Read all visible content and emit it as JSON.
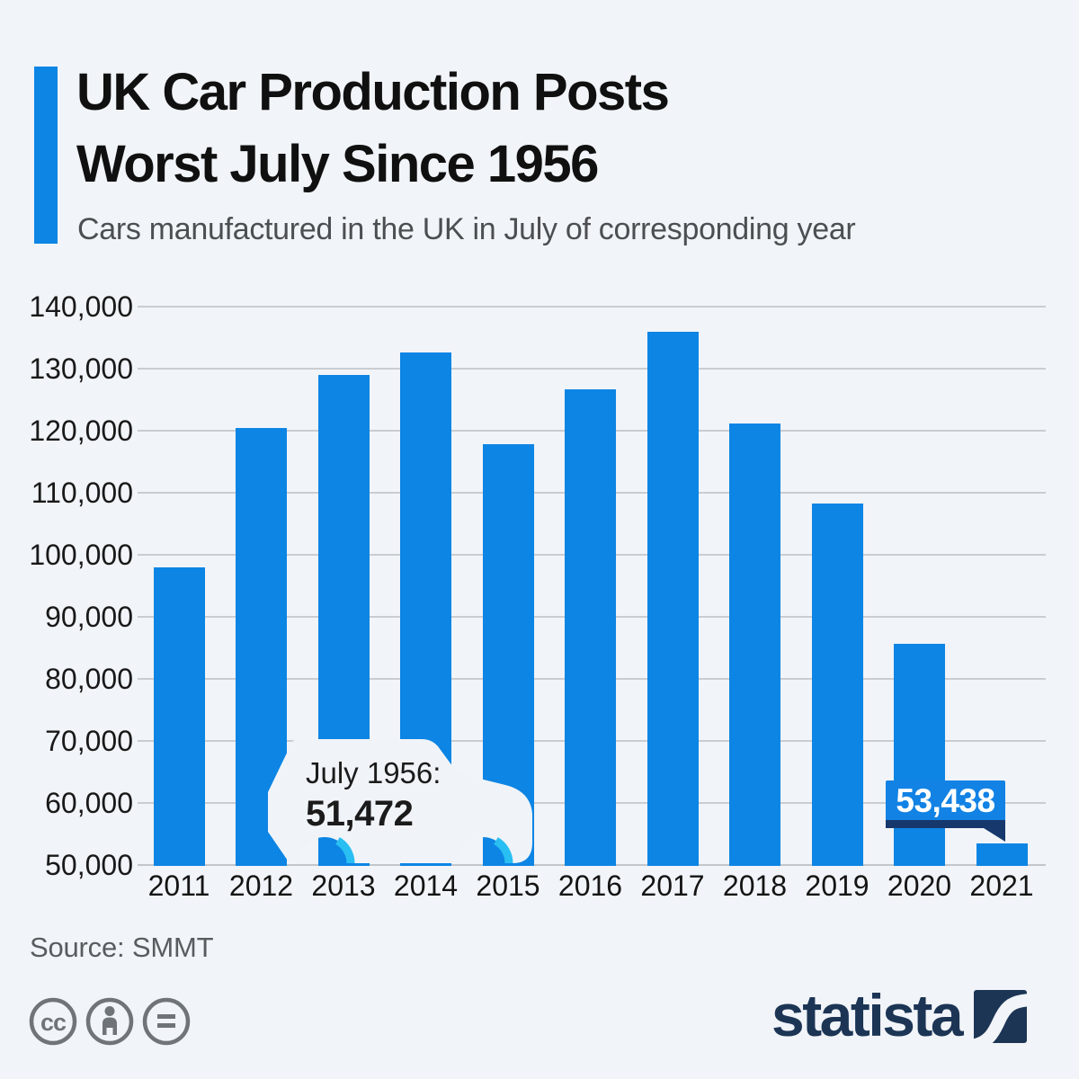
{
  "header": {
    "title_line1": "UK Car Production Posts",
    "title_line2": "Worst July Since 1956",
    "subtitle": "Cars manufactured in the UK in July of corresponding year"
  },
  "chart_data": {
    "type": "bar",
    "title": "UK Car Production Posts Worst July Since 1956",
    "categories": [
      "2011",
      "2012",
      "2013",
      "2014",
      "2015",
      "2016",
      "2017",
      "2018",
      "2019",
      "2020",
      "2021"
    ],
    "values": [
      98000,
      120500,
      129000,
      132600,
      117800,
      126600,
      136000,
      121100,
      108300,
      85600,
      53438
    ],
    "yticks": [
      "140,000",
      "130,000",
      "120,000",
      "110,000",
      "100,000",
      "90,000",
      "80,000",
      "70,000",
      "60,000",
      "50,000"
    ],
    "ylim": [
      50000,
      140000
    ],
    "ytick_step": 10000,
    "grid": true,
    "legend_position": "none",
    "xlabel": "",
    "ylabel": "",
    "annotations": [
      {
        "id": "car-callout",
        "line1": "July 1956:",
        "line2": "51,472"
      },
      {
        "id": "value-flag",
        "label": "53,438",
        "category": "2021"
      }
    ]
  },
  "footer": {
    "source": "Source: SMMT",
    "license_icons": [
      "cc-icon",
      "cc-by-icon",
      "cc-nd-icon"
    ],
    "logo_text": "statista"
  },
  "colors": {
    "bg": "#f1f4f8",
    "bar_blue": "#0d85e4",
    "flag_blue": "#1282e4",
    "flag_dark": "#16386d",
    "cyan_accent": "#29bff2",
    "car_body": "#f0f4f8",
    "navy": "#1c3555",
    "gray_icon": "#6e7478"
  }
}
